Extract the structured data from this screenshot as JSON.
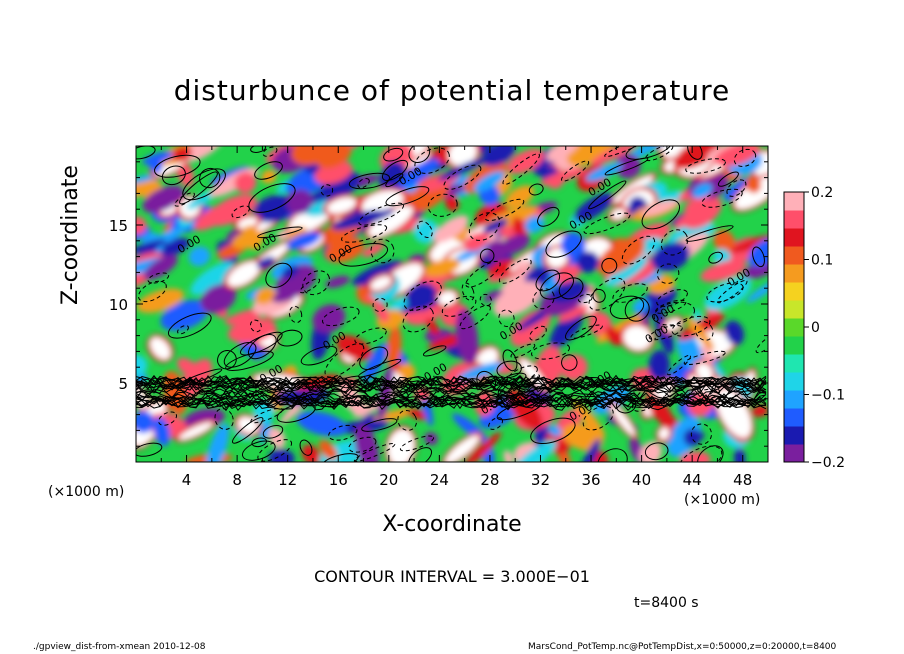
{
  "chart_data": {
    "type": "heatmap",
    "title": "disturbunce of potential temperature",
    "xlabel": "X-coordinate",
    "ylabel": "Z-coordinate",
    "x_units_left": "(×1000 m)",
    "x_units_right": "(×1000 m)",
    "xlim": [
      0,
      50
    ],
    "ylim": [
      0,
      20
    ],
    "x_ticks": [
      4,
      8,
      12,
      16,
      20,
      24,
      28,
      32,
      36,
      40,
      44,
      48
    ],
    "y_ticks": [
      5,
      10,
      15
    ],
    "colorbar": {
      "range": [
        -0.2,
        0.2
      ],
      "tick_values": [
        0.2,
        0.1,
        0,
        -0.1,
        -0.2
      ],
      "tick_labels": [
        "0.2",
        "0.1",
        "0",
        "−0.1",
        "−0.2"
      ],
      "colors": [
        "#7a1f9e",
        "#1a1ab0",
        "#1f5cff",
        "#1fa3ff",
        "#1fd4e8",
        "#1fe6b0",
        "#22d24a",
        "#5ad82a",
        "#c8e62a",
        "#f5d21f",
        "#f59b1f",
        "#f05a1f",
        "#e0141f",
        "#ff4f6a",
        "#ffb0b8"
      ]
    },
    "contour_label": "0.00",
    "contour_interval": "CONTOUR INTERVAL = 3.000E−01",
    "time_label": "t=8400 s"
  },
  "footer": {
    "left": "./gpview_dist-from-xmean  2010-12-08",
    "right": "MarsCond_PotTemp.nc@PotTempDist,x=0:50000,z=0:20000,t=8400"
  },
  "colors": {
    "plot_bg": "#22d24a",
    "frame": "#000000"
  }
}
